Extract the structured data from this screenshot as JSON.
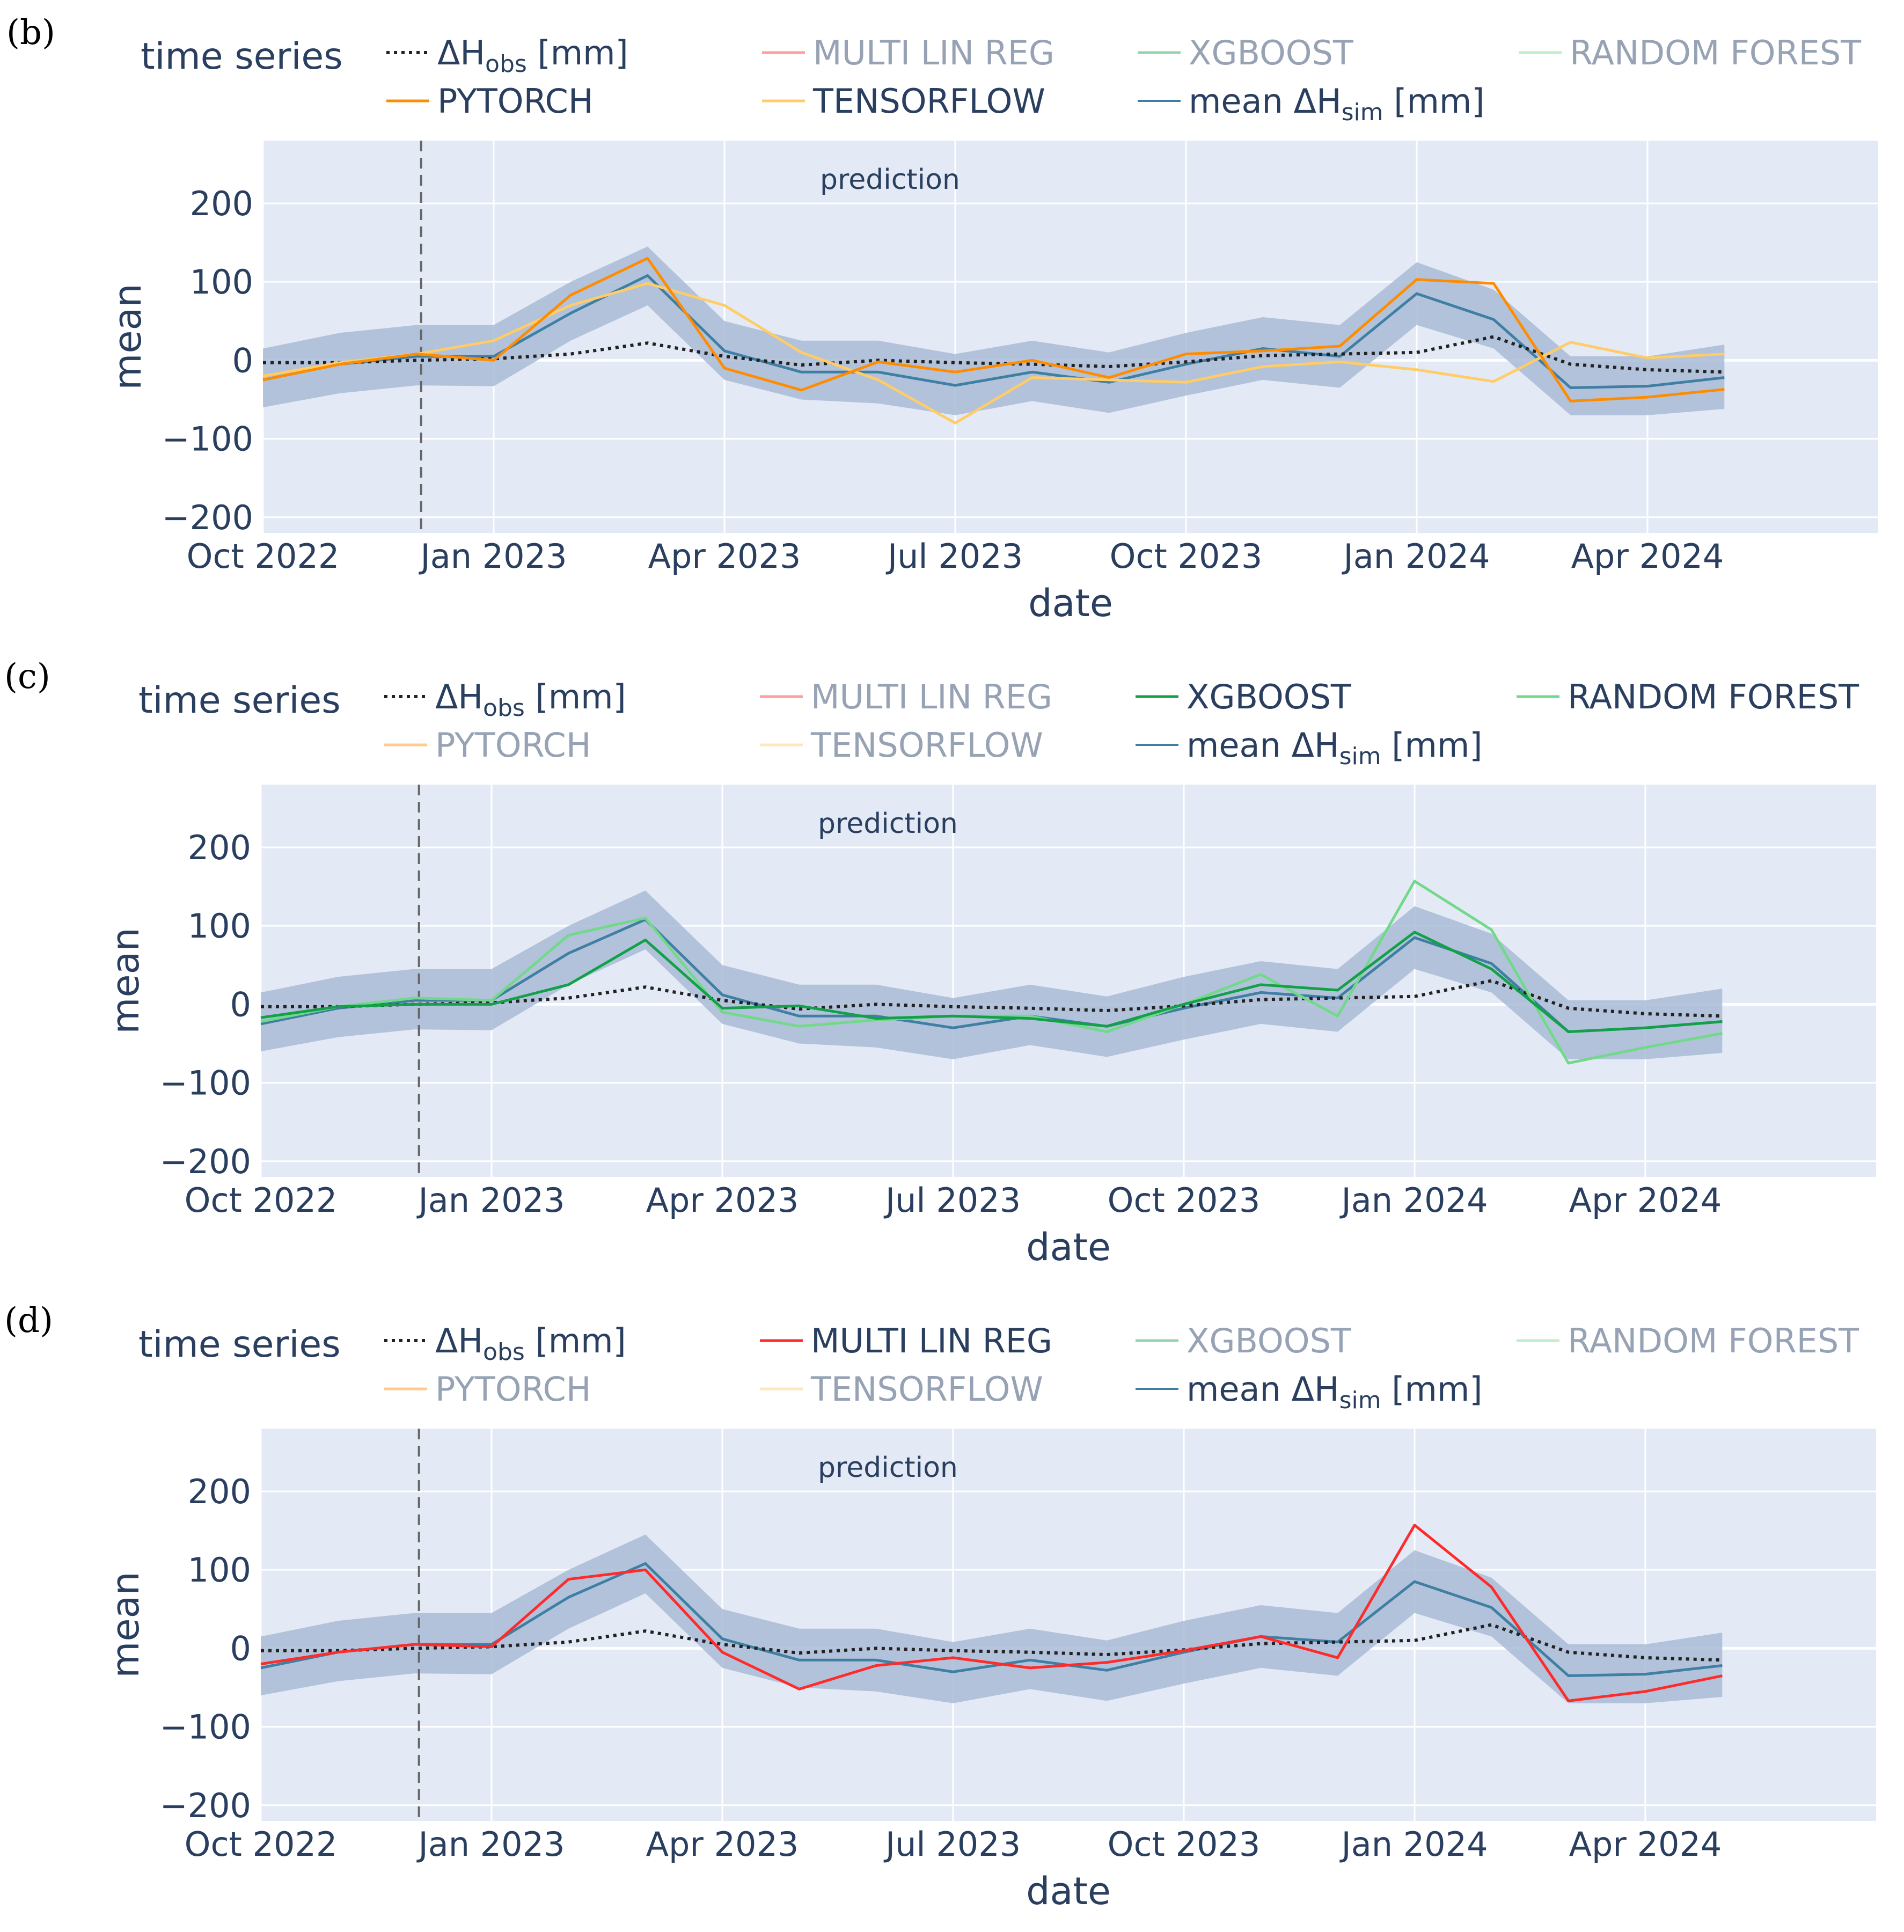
{
  "chart_data": [
    {
      "type": "line",
      "panel_label": "(b)",
      "legend_title": "time series",
      "legend": [
        {
          "key": "obs",
          "name": "ΔH",
          "sub": "obs",
          "unit": " [mm]",
          "active": true
        },
        {
          "key": "mlr",
          "name": "MULTI LIN REG",
          "active": false
        },
        {
          "key": "xgb",
          "name": "XGBOOST",
          "active": false
        },
        {
          "key": "rf",
          "name": "RANDOM FOREST",
          "active": false
        },
        {
          "key": "pt",
          "name": "PYTORCH",
          "active": true
        },
        {
          "key": "tf",
          "name": "TENSORFLOW",
          "active": true
        },
        {
          "key": "sim",
          "name": "mean ΔH",
          "sub": "sim",
          "unit": " [mm]",
          "active": true
        }
      ],
      "annotation": "prediction",
      "xlabel": "date",
      "ylabel": "mean",
      "x_ticks": [
        "Oct 2022",
        "Jan 2023",
        "Apr 2023",
        "Jul 2023",
        "Oct 2023",
        "Jan 2024",
        "Apr 2024"
      ],
      "y_ticks": [
        200,
        100,
        0,
        -100,
        -200
      ],
      "xlim": [
        0,
        21
      ],
      "ylim": [
        -220,
        280
      ],
      "prediction_start": 2,
      "x": [
        0,
        1,
        2,
        3,
        4,
        5,
        6,
        7,
        8,
        9,
        10,
        11,
        12,
        13,
        14,
        15,
        16,
        17,
        18,
        19
      ],
      "band_upper": [
        15,
        35,
        45,
        45,
        100,
        145,
        50,
        25,
        25,
        8,
        25,
        10,
        35,
        55,
        45,
        125,
        90,
        5,
        5,
        20
      ],
      "band_lower": [
        -60,
        -42,
        -32,
        -33,
        25,
        70,
        -25,
        -50,
        -55,
        -70,
        -52,
        -67,
        -45,
        -25,
        -35,
        45,
        15,
        -70,
        -70,
        -62
      ],
      "series": [
        {
          "key": "sim",
          "name": "mean ΔHsim [mm]",
          "values": [
            -25,
            -5,
            5,
            5,
            60,
            108,
            12,
            -15,
            -15,
            -32,
            -15,
            -28,
            -5,
            15,
            5,
            85,
            52,
            -35,
            -33,
            -22
          ]
        },
        {
          "key": "obs",
          "name": "ΔHobs [mm]",
          "values": [
            -3,
            -3,
            0,
            2,
            8,
            22,
            5,
            -6,
            0,
            -3,
            -5,
            -8,
            -2,
            6,
            8,
            10,
            30,
            -5,
            -12,
            -15
          ]
        },
        {
          "key": "tf",
          "name": "TENSORFLOW",
          "values": [
            -20,
            -3,
            8,
            25,
            70,
            98,
            70,
            10,
            -25,
            -80,
            -22,
            -25,
            -28,
            -8,
            -2,
            -12,
            -27,
            23,
            3,
            8
          ]
        },
        {
          "key": "pt",
          "name": "PYTORCH",
          "values": [
            -25,
            -5,
            8,
            0,
            83,
            130,
            -10,
            -38,
            -2,
            -15,
            0,
            -22,
            8,
            12,
            18,
            103,
            98,
            -52,
            -47,
            -37
          ]
        }
      ]
    },
    {
      "type": "line",
      "panel_label": "(c)",
      "legend_title": "time series",
      "legend": [
        {
          "key": "obs",
          "name": "ΔH",
          "sub": "obs",
          "unit": " [mm]",
          "active": true
        },
        {
          "key": "mlr",
          "name": "MULTI LIN REG",
          "active": false
        },
        {
          "key": "xgb",
          "name": "XGBOOST",
          "active": true
        },
        {
          "key": "rf",
          "name": "RANDOM FOREST",
          "active": true
        },
        {
          "key": "pt",
          "name": "PYTORCH",
          "active": false
        },
        {
          "key": "tf",
          "name": "TENSORFLOW",
          "active": false
        },
        {
          "key": "sim",
          "name": "mean ΔH",
          "sub": "sim",
          "unit": " [mm]",
          "active": true
        }
      ],
      "annotation": "prediction",
      "xlabel": "date",
      "ylabel": "mean",
      "x_ticks": [
        "Oct 2022",
        "Jan 2023",
        "Apr 2023",
        "Jul 2023",
        "Oct 2023",
        "Jan 2024",
        "Apr 2024"
      ],
      "y_ticks": [
        200,
        100,
        0,
        -100,
        -200
      ],
      "xlim": [
        0,
        21
      ],
      "ylim": [
        -220,
        280
      ],
      "prediction_start": 2,
      "x": [
        0,
        1,
        2,
        3,
        4,
        5,
        6,
        7,
        8,
        9,
        10,
        11,
        12,
        13,
        14,
        15,
        16,
        17,
        18,
        19
      ],
      "band_upper": [
        15,
        35,
        45,
        45,
        100,
        145,
        50,
        25,
        25,
        8,
        25,
        10,
        35,
        55,
        45,
        125,
        90,
        5,
        5,
        20
      ],
      "band_lower": [
        -60,
        -42,
        -32,
        -33,
        25,
        70,
        -25,
        -50,
        -55,
        -70,
        -52,
        -67,
        -45,
        -25,
        -35,
        45,
        15,
        -70,
        -70,
        -62
      ],
      "series": [
        {
          "key": "sim",
          "name": "mean ΔHsim [mm]",
          "values": [
            -25,
            -5,
            5,
            5,
            65,
            108,
            12,
            -15,
            -15,
            -30,
            -15,
            -28,
            -5,
            15,
            8,
            85,
            52,
            -35,
            -30,
            -22
          ]
        },
        {
          "key": "obs",
          "name": "ΔHobs [mm]",
          "values": [
            -3,
            -3,
            0,
            2,
            8,
            22,
            5,
            -6,
            0,
            -3,
            -5,
            -8,
            -2,
            6,
            8,
            10,
            30,
            -5,
            -12,
            -15
          ]
        },
        {
          "key": "rf",
          "name": "RANDOM FOREST",
          "values": [
            -22,
            -3,
            8,
            5,
            88,
            110,
            -10,
            -28,
            -20,
            -15,
            -15,
            -35,
            0,
            38,
            -15,
            157,
            95,
            -75,
            -55,
            -37
          ]
        },
        {
          "key": "xgb",
          "name": "XGBOOST",
          "values": [
            -17,
            -3,
            0,
            0,
            25,
            82,
            -5,
            -2,
            -18,
            -15,
            -18,
            -28,
            0,
            25,
            18,
            92,
            45,
            -35,
            -30,
            -22
          ]
        }
      ]
    },
    {
      "type": "line",
      "panel_label": "(d)",
      "legend_title": "time series",
      "legend": [
        {
          "key": "obs",
          "name": "ΔH",
          "sub": "obs",
          "unit": " [mm]",
          "active": true
        },
        {
          "key": "mlr",
          "name": "MULTI LIN REG",
          "active": true
        },
        {
          "key": "xgb",
          "name": "XGBOOST",
          "active": false
        },
        {
          "key": "rf",
          "name": "RANDOM FOREST",
          "active": false
        },
        {
          "key": "pt",
          "name": "PYTORCH",
          "active": false
        },
        {
          "key": "tf",
          "name": "TENSORFLOW",
          "active": false
        },
        {
          "key": "sim",
          "name": "mean ΔH",
          "sub": "sim",
          "unit": " [mm]",
          "active": true
        }
      ],
      "annotation": "prediction",
      "xlabel": "date",
      "ylabel": "mean",
      "x_ticks": [
        "Oct 2022",
        "Jan 2023",
        "Apr 2023",
        "Jul 2023",
        "Oct 2023",
        "Jan 2024",
        "Apr 2024"
      ],
      "y_ticks": [
        200,
        100,
        0,
        -100,
        -200
      ],
      "xlim": [
        0,
        21
      ],
      "ylim": [
        -220,
        280
      ],
      "prediction_start": 2,
      "x": [
        0,
        1,
        2,
        3,
        4,
        5,
        6,
        7,
        8,
        9,
        10,
        11,
        12,
        13,
        14,
        15,
        16,
        17,
        18,
        19
      ],
      "band_upper": [
        15,
        35,
        45,
        45,
        100,
        145,
        50,
        25,
        25,
        8,
        25,
        10,
        35,
        55,
        45,
        125,
        90,
        5,
        5,
        20
      ],
      "band_lower": [
        -60,
        -42,
        -32,
        -33,
        25,
        70,
        -25,
        -50,
        -55,
        -70,
        -52,
        -67,
        -45,
        -25,
        -35,
        45,
        15,
        -70,
        -70,
        -62
      ],
      "series": [
        {
          "key": "sim",
          "name": "mean ΔHsim [mm]",
          "values": [
            -25,
            -5,
            5,
            5,
            65,
            108,
            12,
            -15,
            -15,
            -30,
            -15,
            -28,
            -5,
            15,
            8,
            85,
            52,
            -35,
            -33,
            -22
          ]
        },
        {
          "key": "obs",
          "name": "ΔHobs [mm]",
          "values": [
            -3,
            -3,
            0,
            2,
            8,
            22,
            5,
            -6,
            0,
            -3,
            -5,
            -8,
            -2,
            6,
            8,
            10,
            30,
            -5,
            -12,
            -15
          ]
        },
        {
          "key": "mlr",
          "name": "MULTI LIN REG",
          "values": [
            -20,
            -5,
            5,
            2,
            88,
            100,
            -5,
            -52,
            -22,
            -12,
            -25,
            -18,
            -3,
            15,
            -12,
            157,
            78,
            -67,
            -55,
            -35
          ]
        }
      ]
    }
  ],
  "colors": {
    "obs": "#222222",
    "mlr": "#ff2a2a",
    "xgb": "#14a049",
    "rf": "#72d98a",
    "pt": "#ff8c00",
    "tf": "#ffcc66",
    "sim": "#3f7fa3",
    "band": "#a9bbd5",
    "plot_bg": "#e3eaf5",
    "grid": "#ffffff",
    "text": "#2a3f5f",
    "inactive_text": "#97a3b5"
  }
}
